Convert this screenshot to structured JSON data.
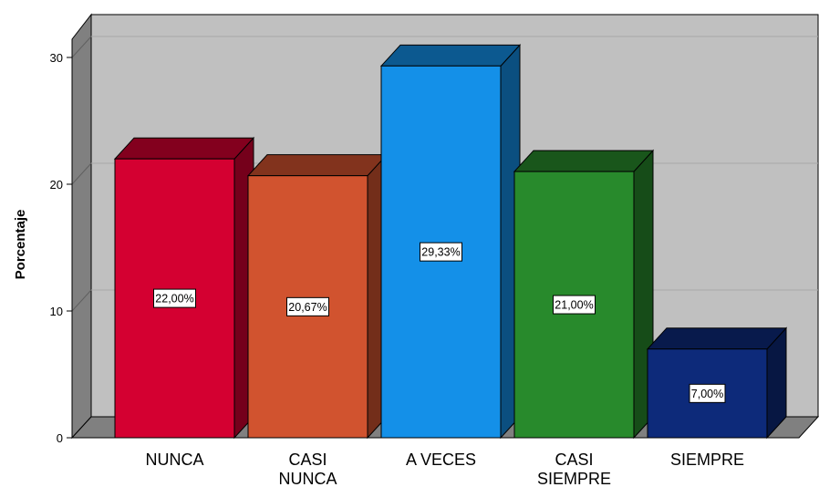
{
  "chart_data": {
    "type": "bar",
    "style": "3d",
    "categories": [
      [
        "NUNCA"
      ],
      [
        "CASI",
        "NUNCA"
      ],
      [
        "A VECES"
      ],
      [
        "CASI",
        "SIEMPRE"
      ],
      [
        "SIEMPRE"
      ]
    ],
    "values": [
      22.0,
      20.67,
      29.33,
      21.0,
      7.0
    ],
    "data_labels": [
      "22,00%",
      "20,67%",
      "29,33%",
      "21,00%",
      "7,00%"
    ],
    "colors": [
      "#d40031",
      "#d1532f",
      "#1490e8",
      "#288a2c",
      "#0d2a7a"
    ],
    "ylabel": "Porcentaje",
    "ylim": [
      0,
      30
    ],
    "yticks": [
      0,
      10,
      20,
      30
    ],
    "wall_color": "#c0c0c0",
    "side_wall_color": "#808080",
    "grid": true
  }
}
